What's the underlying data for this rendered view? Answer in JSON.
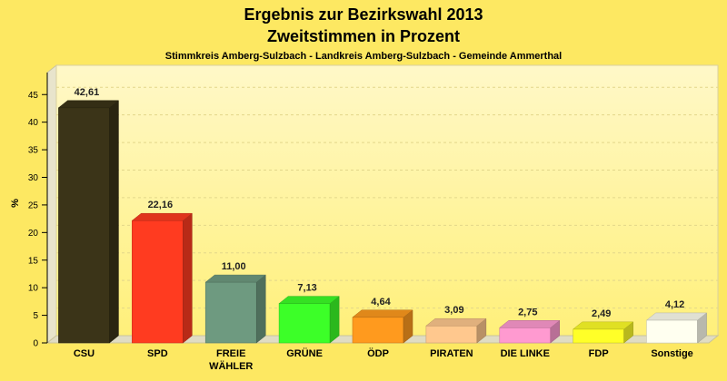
{
  "chart_data": {
    "type": "bar",
    "title": "Ergebnis zur Bezirkswahl 2013",
    "title2": "Zweitstimmen in Prozent",
    "subtitle": "Stimmkreis Amberg-Sulzbach - Landkreis Amberg-Sulzbach - Gemeinde Ammerthal",
    "ylabel": "%",
    "xlabel": "",
    "ylim": [
      0,
      48
    ],
    "yticks": [
      0,
      5,
      10,
      15,
      20,
      25,
      30,
      35,
      40,
      45
    ],
    "grid": true,
    "categories": [
      "CSU",
      "SPD",
      "FREIE\nWÄHLER",
      "GRÜNE",
      "ÖDP",
      "PIRATEN",
      "DIE LINKE",
      "FDP",
      "Sonstige"
    ],
    "values": [
      42.61,
      22.16,
      11.0,
      7.13,
      4.64,
      3.09,
      2.75,
      2.49,
      4.12
    ],
    "value_labels": [
      "42,61",
      "22,16",
      "11,00",
      "7,13",
      "4,64",
      "3,09",
      "2,75",
      "2,49",
      "4,12"
    ],
    "colors": [
      "#3b3418",
      "#ff3b20",
      "#6e9a80",
      "#3cff28",
      "#ff9a1e",
      "#ffc88e",
      "#ff9ad0",
      "#ffff28",
      "#fffff0"
    ]
  }
}
